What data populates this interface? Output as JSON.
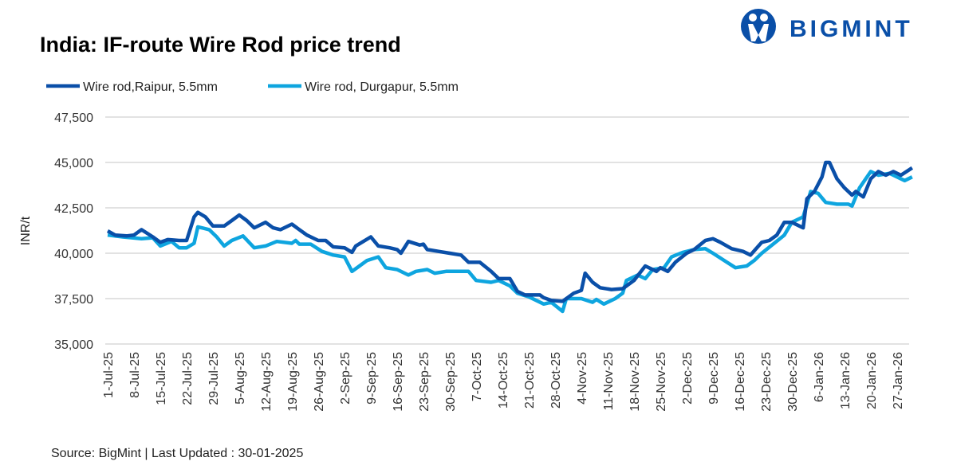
{
  "chart_data": {
    "type": "line",
    "title": "India: IF-route Wire Rod price trend",
    "ylabel": "INR/t",
    "xlabel": "",
    "ylim": [
      35000,
      47500
    ],
    "yticks": [
      35000,
      37500,
      40000,
      42500,
      45000,
      47500
    ],
    "ytick_labels": [
      "35,000",
      "37,500",
      "40,000",
      "42,500",
      "45,000",
      "47,500"
    ],
    "xlim": [
      "2025-07-01",
      "2026-01-31"
    ],
    "xtick_dates": [
      "2025-07-01",
      "2025-07-08",
      "2025-07-15",
      "2025-07-22",
      "2025-07-29",
      "2025-08-05",
      "2025-08-12",
      "2025-08-19",
      "2025-08-26",
      "2025-09-02",
      "2025-09-09",
      "2025-09-16",
      "2025-09-23",
      "2025-09-30",
      "2025-10-07",
      "2025-10-14",
      "2025-10-21",
      "2025-10-28",
      "2025-11-04",
      "2025-11-11",
      "2025-11-18",
      "2025-11-25",
      "2025-12-02",
      "2025-12-09",
      "2025-12-16",
      "2025-12-23",
      "2025-12-30",
      "2026-01-06",
      "2026-01-13",
      "2026-01-20",
      "2026-01-27"
    ],
    "xtick_labels": [
      "1-Jul-25",
      "8-Jul-25",
      "15-Jul-25",
      "22-Jul-25",
      "29-Jul-25",
      "5-Aug-25",
      "12-Aug-25",
      "19-Aug-25",
      "26-Aug-25",
      "2-Sep-25",
      "9-Sep-25",
      "16-Sep-25",
      "23-Sep-25",
      "30-Sep-25",
      "7-Oct-25",
      "14-Oct-25",
      "21-Oct-25",
      "28-Oct-25",
      "4-Nov-25",
      "11-Nov-25",
      "18-Nov-25",
      "25-Nov-25",
      "2-Dec-25",
      "9-Dec-25",
      "16-Dec-25",
      "23-Dec-25",
      "30-Dec-25",
      "6-Jan-26",
      "13-Jan-26",
      "20-Jan-26",
      "27-Jan-26"
    ],
    "grid": "horizontal",
    "legend_position": "top-left",
    "series": [
      {
        "name": "Wire rod,Raipur, 5.5mm",
        "color": "#0a4fa8",
        "points": [
          [
            "2025-07-01",
            41230
          ],
          [
            "2025-07-03",
            41000
          ],
          [
            "2025-07-06",
            40950
          ],
          [
            "2025-07-08",
            41000
          ],
          [
            "2025-07-10",
            41300
          ],
          [
            "2025-07-13",
            40900
          ],
          [
            "2025-07-15",
            40600
          ],
          [
            "2025-07-17",
            40750
          ],
          [
            "2025-07-20",
            40700
          ],
          [
            "2025-07-22",
            40700
          ],
          [
            "2025-07-24",
            42000
          ],
          [
            "2025-07-25",
            42250
          ],
          [
            "2025-07-27",
            42000
          ],
          [
            "2025-07-29",
            41500
          ],
          [
            "2025-08-01",
            41500
          ],
          [
            "2025-08-03",
            41800
          ],
          [
            "2025-08-05",
            42100
          ],
          [
            "2025-08-07",
            41800
          ],
          [
            "2025-08-09",
            41400
          ],
          [
            "2025-08-12",
            41700
          ],
          [
            "2025-08-14",
            41400
          ],
          [
            "2025-08-16",
            41300
          ],
          [
            "2025-08-19",
            41600
          ],
          [
            "2025-08-21",
            41300
          ],
          [
            "2025-08-23",
            41000
          ],
          [
            "2025-08-26",
            40700
          ],
          [
            "2025-08-28",
            40700
          ],
          [
            "2025-08-30",
            40350
          ],
          [
            "2025-09-02",
            40300
          ],
          [
            "2025-09-04",
            40050
          ],
          [
            "2025-09-05",
            40400
          ],
          [
            "2025-09-07",
            40650
          ],
          [
            "2025-09-09",
            40900
          ],
          [
            "2025-09-11",
            40400
          ],
          [
            "2025-09-14",
            40300
          ],
          [
            "2025-09-16",
            40200
          ],
          [
            "2025-09-17",
            40000
          ],
          [
            "2025-09-19",
            40650
          ],
          [
            "2025-09-22",
            40450
          ],
          [
            "2025-09-23",
            40500
          ],
          [
            "2025-09-24",
            40200
          ],
          [
            "2025-09-27",
            40100
          ],
          [
            "2025-09-30",
            40000
          ],
          [
            "2025-10-03",
            39900
          ],
          [
            "2025-10-05",
            39500
          ],
          [
            "2025-10-08",
            39500
          ],
          [
            "2025-10-11",
            39000
          ],
          [
            "2025-10-13",
            38600
          ],
          [
            "2025-10-16",
            38600
          ],
          [
            "2025-10-18",
            37900
          ],
          [
            "2025-10-20",
            37700
          ],
          [
            "2025-10-24",
            37700
          ],
          [
            "2025-10-25",
            37550
          ],
          [
            "2025-10-27",
            37400
          ],
          [
            "2025-10-30",
            37350
          ],
          [
            "2025-11-02",
            37800
          ],
          [
            "2025-11-04",
            37950
          ],
          [
            "2025-11-05",
            38900
          ],
          [
            "2025-11-07",
            38400
          ],
          [
            "2025-11-09",
            38100
          ],
          [
            "2025-11-12",
            38000
          ],
          [
            "2025-11-15",
            38050
          ],
          [
            "2025-11-18",
            38500
          ],
          [
            "2025-11-21",
            39300
          ],
          [
            "2025-11-24",
            39000
          ],
          [
            "2025-11-25",
            39200
          ],
          [
            "2025-11-27",
            39000
          ],
          [
            "2025-11-29",
            39500
          ],
          [
            "2025-12-02",
            40000
          ],
          [
            "2025-12-04",
            40200
          ],
          [
            "2025-12-07",
            40700
          ],
          [
            "2025-12-09",
            40800
          ],
          [
            "2025-12-11",
            40600
          ],
          [
            "2025-12-14",
            40250
          ],
          [
            "2025-12-17",
            40100
          ],
          [
            "2025-12-19",
            39900
          ],
          [
            "2025-12-22",
            40600
          ],
          [
            "2025-12-24",
            40700
          ],
          [
            "2025-12-26",
            41000
          ],
          [
            "2025-12-28",
            41700
          ],
          [
            "2025-12-30",
            41700
          ],
          [
            "2026-01-01",
            41500
          ],
          [
            "2026-01-02",
            41400
          ],
          [
            "2026-01-03",
            43000
          ],
          [
            "2026-01-05",
            43400
          ],
          [
            "2026-01-07",
            44200
          ],
          [
            "2026-01-08",
            45000
          ],
          [
            "2026-01-09",
            45000
          ],
          [
            "2026-01-11",
            44100
          ],
          [
            "2026-01-13",
            43600
          ],
          [
            "2026-01-15",
            43200
          ],
          [
            "2026-01-16",
            43400
          ],
          [
            "2026-01-18",
            43100
          ],
          [
            "2026-01-20",
            44100
          ],
          [
            "2026-01-22",
            44500
          ],
          [
            "2026-01-24",
            44300
          ],
          [
            "2026-01-26",
            44500
          ],
          [
            "2026-01-28",
            44300
          ],
          [
            "2026-01-31",
            44700
          ]
        ]
      },
      {
        "name": "Wire rod, Durgapur, 5.5mm",
        "color": "#0ea5df",
        "points": [
          [
            "2025-07-01",
            41000
          ],
          [
            "2025-07-05",
            40900
          ],
          [
            "2025-07-10",
            40800
          ],
          [
            "2025-07-13",
            40850
          ],
          [
            "2025-07-15",
            40400
          ],
          [
            "2025-07-18",
            40650
          ],
          [
            "2025-07-20",
            40300
          ],
          [
            "2025-07-22",
            40300
          ],
          [
            "2025-07-24",
            40550
          ],
          [
            "2025-07-25",
            41450
          ],
          [
            "2025-07-28",
            41300
          ],
          [
            "2025-07-30",
            40900
          ],
          [
            "2025-08-01",
            40400
          ],
          [
            "2025-08-03",
            40700
          ],
          [
            "2025-08-06",
            40950
          ],
          [
            "2025-08-09",
            40300
          ],
          [
            "2025-08-12",
            40400
          ],
          [
            "2025-08-15",
            40650
          ],
          [
            "2025-08-19",
            40550
          ],
          [
            "2025-08-20",
            40700
          ],
          [
            "2025-08-21",
            40500
          ],
          [
            "2025-08-24",
            40500
          ],
          [
            "2025-08-27",
            40100
          ],
          [
            "2025-08-30",
            39900
          ],
          [
            "2025-09-02",
            39800
          ],
          [
            "2025-09-04",
            39000
          ],
          [
            "2025-09-06",
            39300
          ],
          [
            "2025-09-08",
            39600
          ],
          [
            "2025-09-11",
            39800
          ],
          [
            "2025-09-13",
            39200
          ],
          [
            "2025-09-16",
            39100
          ],
          [
            "2025-09-19",
            38800
          ],
          [
            "2025-09-21",
            39000
          ],
          [
            "2025-09-24",
            39100
          ],
          [
            "2025-09-26",
            38900
          ],
          [
            "2025-09-29",
            39000
          ],
          [
            "2025-10-05",
            39000
          ],
          [
            "2025-10-07",
            38500
          ],
          [
            "2025-10-11",
            38400
          ],
          [
            "2025-10-13",
            38500
          ],
          [
            "2025-10-16",
            38200
          ],
          [
            "2025-10-18",
            37800
          ],
          [
            "2025-10-21",
            37600
          ],
          [
            "2025-10-25",
            37200
          ],
          [
            "2025-10-27",
            37300
          ],
          [
            "2025-10-30",
            36800
          ],
          [
            "2025-10-31",
            37500
          ],
          [
            "2025-11-04",
            37500
          ],
          [
            "2025-11-07",
            37300
          ],
          [
            "2025-11-08",
            37450
          ],
          [
            "2025-11-10",
            37200
          ],
          [
            "2025-11-13",
            37500
          ],
          [
            "2025-11-15",
            37800
          ],
          [
            "2025-11-16",
            38500
          ],
          [
            "2025-11-19",
            38800
          ],
          [
            "2025-11-21",
            38600
          ],
          [
            "2025-11-23",
            39100
          ],
          [
            "2025-11-26",
            39200
          ],
          [
            "2025-11-28",
            39800
          ],
          [
            "2025-12-01",
            40050
          ],
          [
            "2025-12-04",
            40200
          ],
          [
            "2025-12-07",
            40250
          ],
          [
            "2025-12-09",
            40000
          ],
          [
            "2025-12-12",
            39600
          ],
          [
            "2025-12-15",
            39200
          ],
          [
            "2025-12-18",
            39300
          ],
          [
            "2025-12-20",
            39600
          ],
          [
            "2025-12-22",
            40000
          ],
          [
            "2025-12-25",
            40500
          ],
          [
            "2025-12-28",
            41000
          ],
          [
            "2025-12-30",
            41700
          ],
          [
            "2026-01-02",
            42000
          ],
          [
            "2026-01-04",
            43400
          ],
          [
            "2026-01-06",
            43300
          ],
          [
            "2026-01-08",
            42800
          ],
          [
            "2026-01-11",
            42700
          ],
          [
            "2026-01-14",
            42700
          ],
          [
            "2026-01-15",
            42600
          ],
          [
            "2026-01-17",
            43600
          ],
          [
            "2026-01-20",
            44500
          ],
          [
            "2026-01-22",
            44300
          ],
          [
            "2026-01-25",
            44400
          ],
          [
            "2026-01-29",
            44000
          ],
          [
            "2026-01-31",
            44200
          ]
        ]
      }
    ]
  },
  "source": "Source: BigMint | Last Updated : 30-01-2025",
  "logo": {
    "text": "BIGMINT",
    "color": "#0a4fa8"
  }
}
